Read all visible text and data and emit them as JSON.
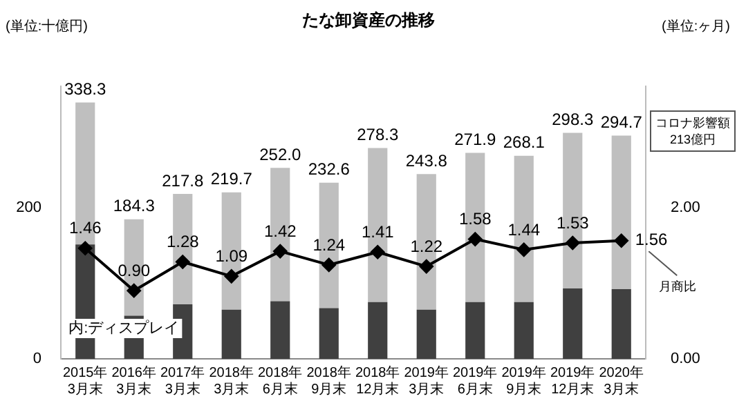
{
  "chart_data": {
    "type": "bar",
    "title": "たな卸資産の推移",
    "stacked": true,
    "categories": [
      "2015年\n3月末",
      "2016年\n3月末",
      "2017年\n3月末",
      "2018年\n3月末",
      "2018年\n6月末",
      "2018年\n9月末",
      "2018年\n12月末",
      "2019年\n3月末",
      "2019年\n6月末",
      "2019年\n9月末",
      "2019年\n12月末",
      "2020年\n3月末"
    ],
    "series": [
      {
        "type": "bar",
        "color": "#404040",
        "values": [
          151,
          57,
          72,
          65,
          76,
          67,
          75,
          65,
          75,
          75,
          93,
          92
        ]
      },
      {
        "color": "#bfbfbf",
        "values": [
          187.3,
          127.3,
          145.8,
          154.7,
          176.0,
          165.6,
          203.3,
          178.8,
          196.9,
          193.1,
          205.3,
          202.7
        ]
      },
      {
        "type": "line",
        "axis": "y2",
        "color": "#000000",
        "marker": "diamond",
        "values": [
          1.46,
          0.9,
          1.28,
          1.09,
          1.42,
          1.24,
          1.41,
          1.22,
          1.58,
          1.44,
          1.53,
          1.56
        ],
        "value_labels": [
          "1.46",
          "0.90",
          "1.28",
          "1.09",
          "1.42",
          "1.24",
          "1.41",
          "1.22",
          "1.58",
          "1.44",
          "1.53",
          "1.56"
        ]
      }
    ],
    "totals": [
      "338.3",
      "184.3",
      "217.8",
      "219.7",
      "252.0",
      "232.6",
      "278.3",
      "243.8",
      "271.9",
      "268.1",
      "298.3",
      "294.7"
    ],
    "ylim": [
      0,
      360
    ],
    "yticks": [
      0,
      200
    ],
    "y2lim": [
      0,
      3.6
    ],
    "y2ticks": [
      {
        "value": 0,
        "label": "0.00"
      },
      {
        "value": 2,
        "label": "2.00"
      }
    ],
    "grid": false,
    "legend": false,
    "annotations": [
      "(単位:十億円)",
      "(単位:ヶ月)",
      "内:ディスプレイ",
      "コロナ影響額\n213億円",
      "月商比"
    ]
  }
}
